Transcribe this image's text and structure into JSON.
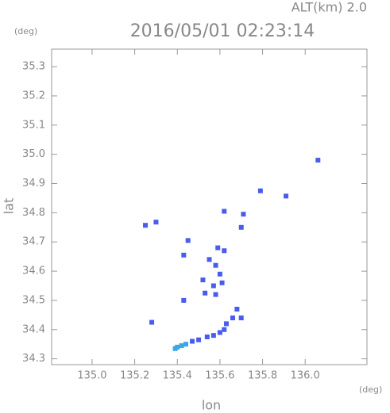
{
  "chart_data": {
    "type": "scatter",
    "title": "2016/05/01 02:23:14",
    "altitude_label": "ALT(km) 2.0",
    "y_unit": "(deg)",
    "x_unit": "(deg)",
    "x_label": "lon",
    "y_label": "lat",
    "xlim": [
      134.81,
      136.29
    ],
    "ylim": [
      34.28,
      35.36
    ],
    "xticks": [
      {
        "value": 135.0,
        "label": "135.0"
      },
      135.2,
      135.4,
      135.6,
      135.8,
      {
        "value": 136.0,
        "label": "136.0"
      }
    ],
    "yticks": [
      34.3,
      34.4,
      34.5,
      34.6,
      34.7,
      34.8,
      34.9,
      {
        "value": 35.0,
        "label": "35.0"
      },
      35.1,
      35.2,
      35.3
    ],
    "series": [
      {
        "color": "#4a5cf0",
        "x": [
          135.25,
          135.3,
          135.28,
          135.43,
          135.79,
          135.91,
          136.06,
          135.62,
          135.71,
          135.7,
          135.45,
          135.43,
          135.59,
          135.62,
          135.55,
          135.58,
          135.6,
          135.52,
          135.57,
          135.53,
          135.61,
          135.58,
          135.68,
          135.7,
          135.66,
          135.63,
          135.62,
          135.6,
          135.57,
          135.54,
          135.5,
          135.47
        ],
        "y": [
          34.757,
          34.768,
          34.425,
          34.5,
          34.875,
          34.857,
          34.98,
          34.805,
          34.795,
          34.75,
          34.705,
          34.655,
          34.68,
          34.67,
          34.64,
          34.62,
          34.59,
          34.57,
          34.55,
          34.525,
          34.56,
          34.52,
          34.47,
          34.44,
          34.44,
          34.42,
          34.4,
          34.39,
          34.38,
          34.375,
          34.365,
          34.36
        ]
      },
      {
        "color": "#3aa8e8",
        "x": [
          135.44,
          135.42,
          135.4,
          135.39
        ],
        "y": [
          34.35,
          34.345,
          34.34,
          34.335
        ]
      }
    ]
  }
}
